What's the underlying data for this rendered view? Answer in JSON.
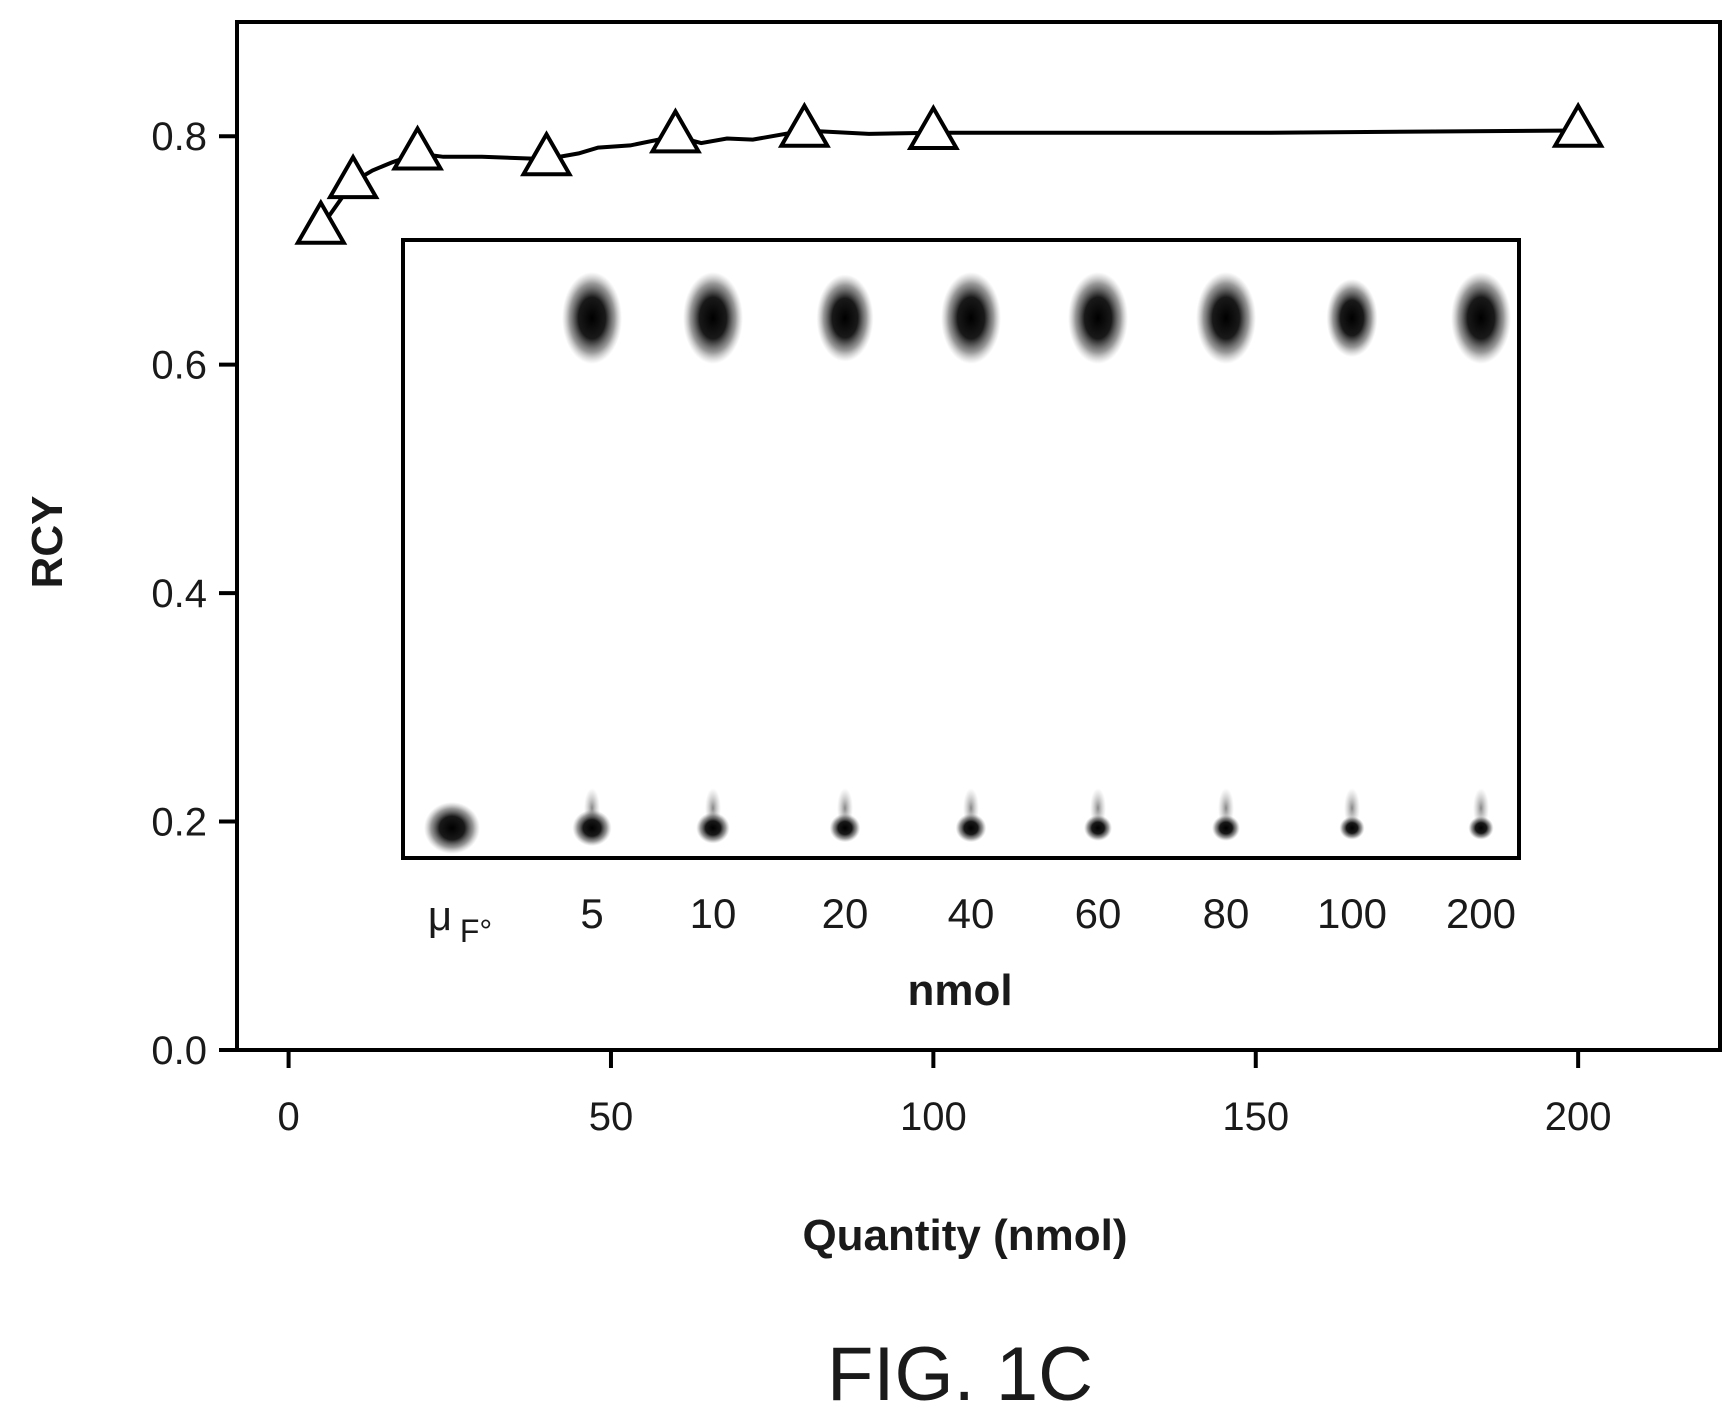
{
  "chart_data": {
    "type": "line",
    "title": "",
    "xlabel": "Quantity (nmol)",
    "ylabel": "RCY",
    "xlim": [
      -8,
      222
    ],
    "ylim": [
      0.0,
      0.9
    ],
    "x_ticks": [
      "0",
      "50",
      "100",
      "150",
      "200"
    ],
    "y_ticks": [
      "0.0",
      "0.2",
      "0.4",
      "0.6",
      "0.8"
    ],
    "grid": false,
    "legend": "none",
    "marker": "open-triangle",
    "series": [
      {
        "x": [
          5,
          10,
          20,
          40,
          60,
          80,
          100,
          200
        ],
        "y": [
          0.72,
          0.76,
          0.785,
          0.78,
          0.8,
          0.805,
          0.803,
          0.805
        ]
      }
    ],
    "line_path": [
      [
        5,
        0.72
      ],
      [
        10,
        0.76
      ],
      [
        13,
        0.77
      ],
      [
        16,
        0.777
      ],
      [
        20,
        0.785
      ],
      [
        24,
        0.782
      ],
      [
        30,
        0.782
      ],
      [
        40,
        0.78
      ],
      [
        45,
        0.785
      ],
      [
        48,
        0.79
      ],
      [
        53,
        0.792
      ],
      [
        60,
        0.8
      ],
      [
        64,
        0.794
      ],
      [
        68,
        0.798
      ],
      [
        72,
        0.797
      ],
      [
        80,
        0.805
      ],
      [
        90,
        0.802
      ],
      [
        100,
        0.803
      ],
      [
        150,
        0.803
      ],
      [
        200,
        0.805
      ]
    ]
  },
  "inset": {
    "lanes": [
      {
        "label_main": "μ",
        "label_sub": "F°",
        "top_spot": 0,
        "bottom_spot": 1.0
      },
      {
        "label": "5",
        "top_spot": 1.0,
        "bottom_spot": 0.7
      },
      {
        "label": "10",
        "top_spot": 1.0,
        "bottom_spot": 0.6
      },
      {
        "label": "20",
        "top_spot": 0.95,
        "bottom_spot": 0.55
      },
      {
        "label": "40",
        "top_spot": 1.0,
        "bottom_spot": 0.55
      },
      {
        "label": "60",
        "top_spot": 1.0,
        "bottom_spot": 0.5
      },
      {
        "label": "80",
        "top_spot": 1.0,
        "bottom_spot": 0.5
      },
      {
        "label": "100",
        "top_spot": 0.85,
        "bottom_spot": 0.45
      },
      {
        "label": "200",
        "top_spot": 1.0,
        "bottom_spot": 0.45
      }
    ],
    "unit_label": "nmol"
  },
  "caption": "FIG. 1C",
  "colors": {
    "ink": "#000000",
    "spot": "#111111",
    "background": "#ffffff"
  }
}
